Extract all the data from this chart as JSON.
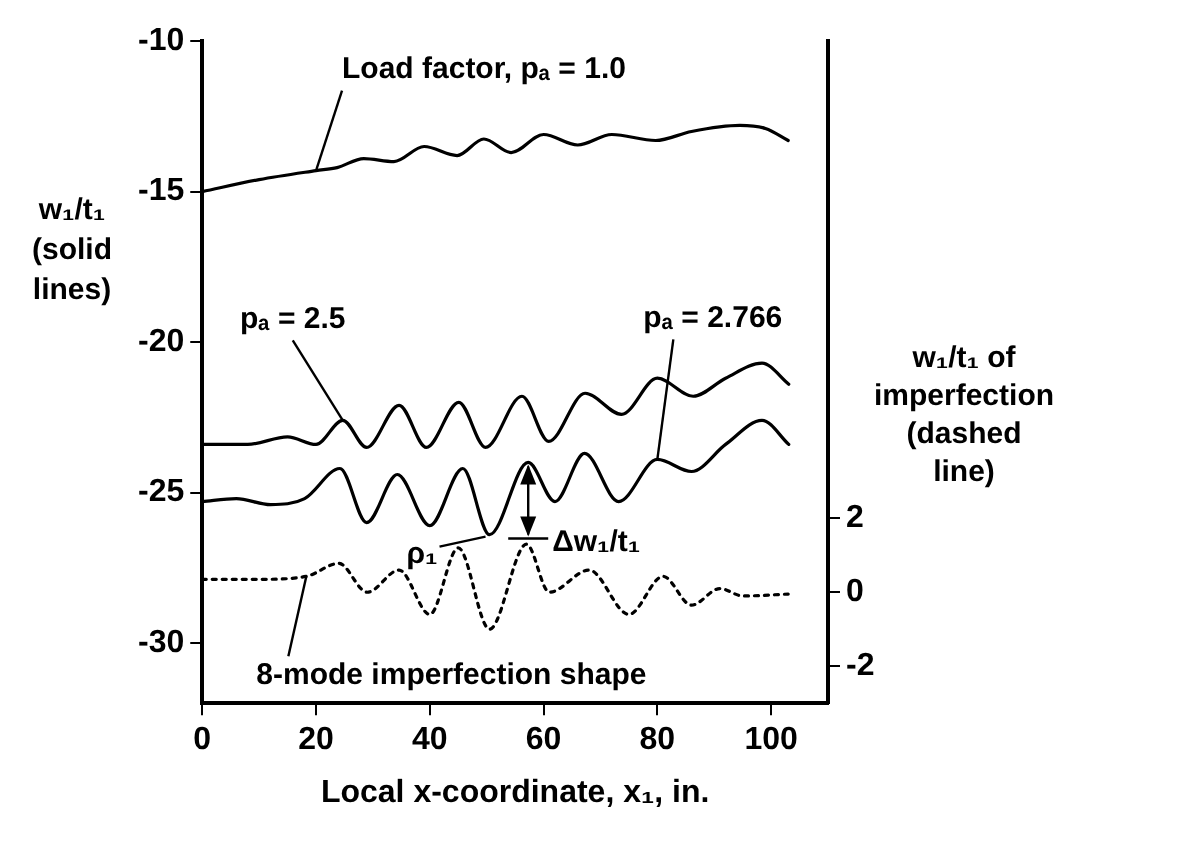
{
  "chart_data": {
    "type": "line",
    "xlabel": "Local x-coordinate, x₁, in.",
    "ylabel": "w₁/t₁ (solid lines)",
    "y2label": "w₁/t₁ of imperfection (dashed line)",
    "xlim": [
      0,
      110
    ],
    "xticks": [
      0,
      20,
      40,
      60,
      80,
      100
    ],
    "ylim": [
      -32,
      -10
    ],
    "yticks": [
      -30,
      -25,
      -20,
      -15,
      -10
    ],
    "y2lim": [
      -3,
      14.9
    ],
    "y2ticks": [
      -2,
      0,
      2
    ],
    "grid": false,
    "legend": false,
    "marker": "none",
    "line_style": "solid",
    "series": [
      {
        "name": "Load factor, pₐ = 1.0",
        "color": "#000000",
        "x": [
          0,
          10,
          20,
          23.7,
          28.4,
          33.7,
          39,
          44.8,
          49.5,
          54.3,
          60,
          66,
          72,
          79.7,
          86,
          94.5,
          99,
          103
        ],
        "values": [
          -15,
          -14.6,
          -14.3,
          -14.2,
          -13.9,
          -14.0,
          -13.5,
          -13.8,
          -13.25,
          -13.7,
          -13.1,
          -13.45,
          -13.1,
          -13.3,
          -13.0,
          -12.8,
          -12.9,
          -13.3
        ]
      },
      {
        "name": "pₐ = 2.5",
        "color": "#000000",
        "x": [
          0,
          8,
          15,
          20,
          24.7,
          28.9,
          34.6,
          39.4,
          45.1,
          49.8,
          56.2,
          60.9,
          67.3,
          73.7,
          80,
          86.3,
          92,
          98.4,
          103.1
        ],
        "values": [
          -23.4,
          -23.4,
          -23.15,
          -23.4,
          -22.6,
          -23.5,
          -22.1,
          -23.5,
          -22.0,
          -23.5,
          -21.8,
          -23.3,
          -21.7,
          -22.4,
          -21.2,
          -21.8,
          -21.2,
          -20.7,
          -21.4
        ]
      },
      {
        "name": "pₐ = 2.766",
        "color": "#000000",
        "x": [
          0,
          6,
          12,
          18,
          24.2,
          28.9,
          34.3,
          40,
          45.8,
          50.5,
          57.3,
          62,
          67.2,
          73.2,
          80,
          86,
          92,
          98.4,
          103.1
        ],
        "values": [
          -25.3,
          -25.2,
          -25.4,
          -25.2,
          -24.2,
          -26.0,
          -24.4,
          -26.1,
          -24.2,
          -26.4,
          -24.0,
          -25.3,
          -23.7,
          -25.3,
          -23.9,
          -24.3,
          -23.4,
          -22.6,
          -23.4
        ]
      },
      {
        "name": "8-mode imperfection shape",
        "color": "#000000",
        "axis": "y2",
        "line_style": "dotted",
        "x": [
          0,
          10,
          18.3,
          24,
          29,
          34.6,
          40,
          45,
          50.5,
          57,
          61,
          68,
          75,
          81,
          86,
          91,
          95,
          103
        ],
        "values": [
          0.35,
          0.35,
          0.43,
          0.78,
          0,
          0.6,
          -0.6,
          1.2,
          -1.0,
          1.3,
          0,
          0.6,
          -0.6,
          0.43,
          -0.35,
          0.1,
          -0.1,
          -0.05
        ]
      }
    ],
    "annotations": [
      {
        "text": "ρ₁",
        "x": 50.5,
        "y": -26.4
      },
      {
        "text": "Δw₁/t₁",
        "x": 57.3,
        "y": -24.0
      }
    ]
  }
}
